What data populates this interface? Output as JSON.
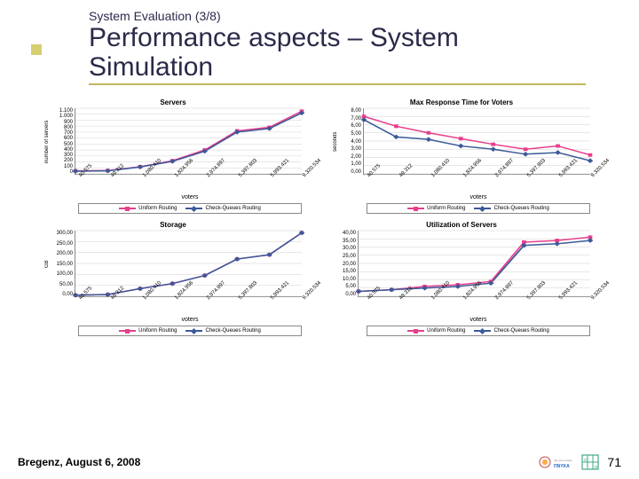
{
  "pre_title": "System Evaluation (3/8)",
  "title": "Performance aspects – System Simulation",
  "footer": {
    "date": "Bregenz, August 6, 2008",
    "page": "71"
  },
  "logos": {
    "pnyka": "ΠΝΥΚΑ"
  },
  "legend": {
    "series1_label": "Uniform Routing",
    "series2_label": "Check-Queues Routing",
    "series1_color": "#e83e8c",
    "series2_color": "#3b5998",
    "series1_marker": "square",
    "series2_marker": "diamond"
  },
  "x_categories": [
    "40.575",
    "49.312",
    "1.080.410",
    "1.824.956",
    "2.974.897",
    "5.397.803",
    "5.993.421",
    "9.320.534"
  ],
  "xlabel": "voters",
  "charts": [
    {
      "title": "Servers",
      "ylabel": "number of servers",
      "ylim": [
        0,
        1100
      ],
      "yticks": [
        "1.100",
        "1.000",
        "900",
        "800",
        "700",
        "600",
        "500",
        "400",
        "300",
        "200",
        "100",
        "0"
      ],
      "series1": [
        50,
        55,
        120,
        220,
        400,
        720,
        780,
        1050
      ],
      "series2": [
        45,
        50,
        115,
        210,
        380,
        700,
        760,
        1020
      ],
      "grid_color": "#d0d0d0",
      "background_color": "#ffffff"
    },
    {
      "title": "Max Response Time for Voters",
      "ylabel": "seconds",
      "ylim": [
        0,
        8
      ],
      "yticks": [
        "8,00",
        "7,00",
        "6,00",
        "5,00",
        "4,00",
        "3,00",
        "2,00",
        "1,00",
        "0,00"
      ],
      "series1": [
        7.0,
        5.8,
        5.0,
        4.3,
        3.6,
        3.0,
        3.4,
        2.3
      ],
      "series2": [
        6.6,
        4.5,
        4.2,
        3.4,
        3.0,
        2.4,
        2.6,
        1.6
      ],
      "grid_color": "#d0d0d0",
      "background_color": "#ffffff"
    },
    {
      "title": "Storage",
      "ylabel": "GB",
      "ylim": [
        0,
        300
      ],
      "yticks": [
        "300,00",
        "250,00",
        "200,00",
        "150,00",
        "100,00",
        "50,00",
        "0,00"
      ],
      "series1": [
        5,
        8,
        35,
        58,
        95,
        170,
        190,
        290
      ],
      "series2": [
        5,
        8,
        35,
        58,
        95,
        170,
        190,
        290
      ],
      "grid_color": "#d0d0d0",
      "background_color": "#ffffff"
    },
    {
      "title": "Utilization of Servers",
      "ylabel": "",
      "ylim": [
        0,
        40
      ],
      "yticks": [
        "40,00",
        "35,00",
        "30,00",
        "25,00",
        "20,00",
        "15,00",
        "10,00",
        "5,00",
        "0,00"
      ],
      "series1": [
        3,
        4,
        6,
        7,
        9,
        33,
        34,
        36
      ],
      "series2": [
        3,
        4,
        5,
        6,
        8,
        31,
        32,
        34
      ],
      "grid_color": "#d0d0d0",
      "background_color": "#ffffff"
    }
  ]
}
